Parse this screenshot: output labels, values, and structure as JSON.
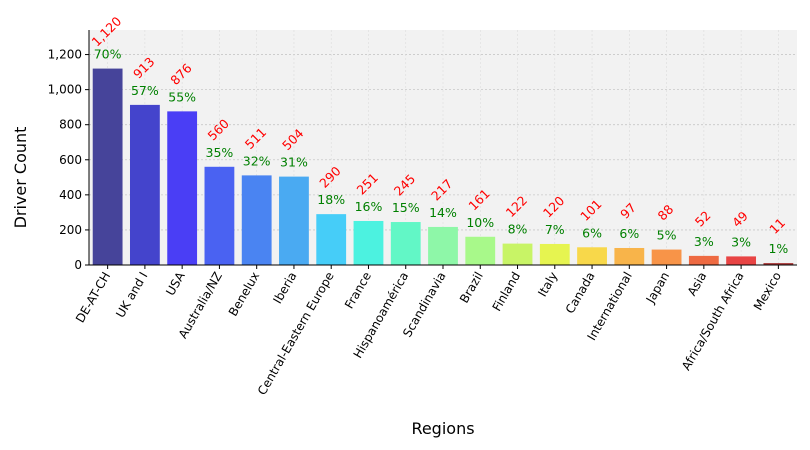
{
  "chart_data": {
    "type": "bar",
    "title": "",
    "xlabel": "Regions",
    "ylabel": "Driver Count",
    "ylim": [
      0,
      1340
    ],
    "yticks": [
      0,
      200,
      400,
      600,
      800,
      1000,
      1200
    ],
    "ytick_labels": [
      "0",
      "200",
      "400",
      "600",
      "800",
      "1,000",
      "1,200"
    ],
    "grid": true,
    "background": "#f2f2f2",
    "count_label_color": "#ff0000",
    "percent_label_color": "#008000",
    "categories": [
      "DE-AT-CH",
      "UK and I",
      "USA",
      "Australia/NZ",
      "Benelux",
      "Iberia",
      "Central-Eastern Europe",
      "France",
      "Hispanoamérica",
      "Scandinavia",
      "Brazil",
      "Finland",
      "Italy",
      "Canada",
      "International",
      "Japan",
      "Asia",
      "Africa/South Africa",
      "Mexico"
    ],
    "values": [
      1120,
      913,
      876,
      560,
      511,
      504,
      290,
      251,
      245,
      217,
      161,
      122,
      120,
      101,
      97,
      88,
      52,
      49,
      11
    ],
    "count_labels": [
      "1,120",
      "913",
      "876",
      "560",
      "511",
      "504",
      "290",
      "251",
      "245",
      "217",
      "161",
      "122",
      "120",
      "101",
      "97",
      "88",
      "52",
      "49",
      "11"
    ],
    "percent_labels": [
      "70%",
      "57%",
      "55%",
      "35%",
      "32%",
      "31%",
      "18%",
      "16%",
      "15%",
      "14%",
      "10%",
      "8%",
      "7%",
      "6%",
      "6%",
      "5%",
      "3%",
      "3%",
      "1%"
    ],
    "colors": [
      "#46449a",
      "#4444cc",
      "#4a3ef5",
      "#4a62f2",
      "#4a84f2",
      "#4aaaf2",
      "#46cdf8",
      "#4cf2e0",
      "#62f7c6",
      "#8ef7a8",
      "#a8f98a",
      "#c8f466",
      "#e6f450",
      "#f8d84a",
      "#f8b44a",
      "#f89448",
      "#ee6a42",
      "#e84444",
      "#aa3a3a"
    ]
  }
}
